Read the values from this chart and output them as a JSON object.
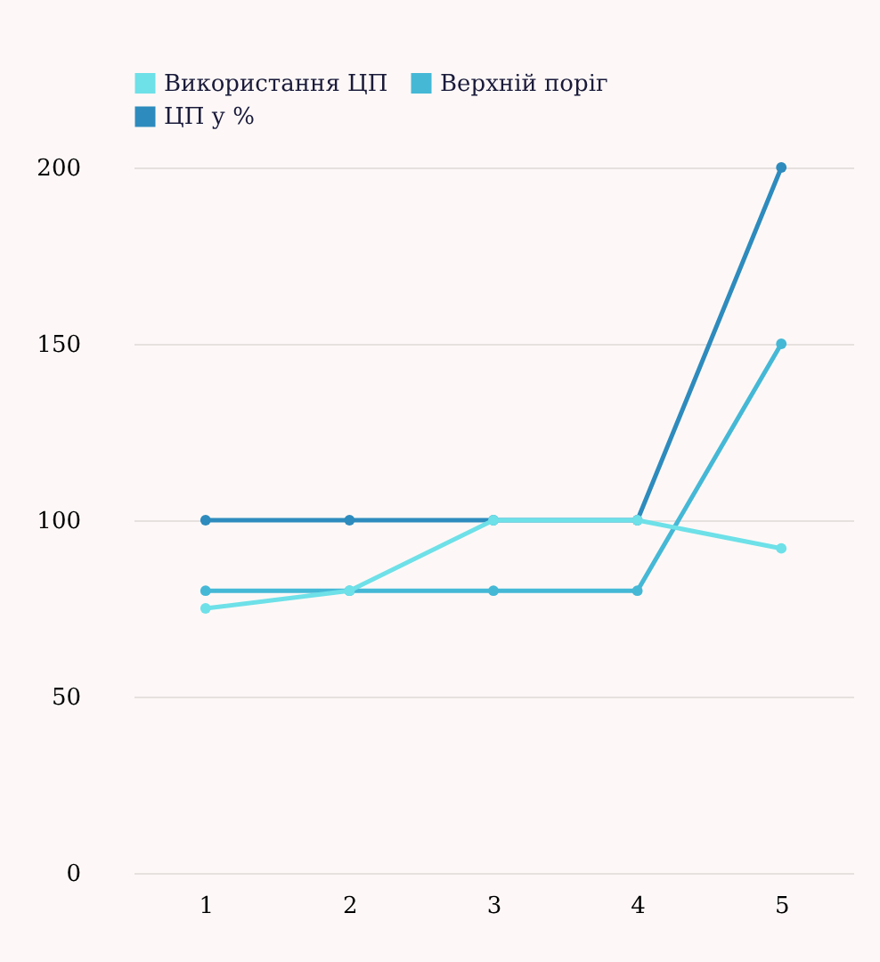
{
  "chart_data": {
    "type": "line",
    "categories": [
      "1",
      "2",
      "3",
      "4",
      "5"
    ],
    "series": [
      {
        "name": "Використання ЦП",
        "color": "#6ee0e8",
        "values": [
          75,
          80,
          100,
          100,
          92
        ]
      },
      {
        "name": "Верхній поріг",
        "color": "#45b8d6",
        "values": [
          80,
          80,
          80,
          80,
          150
        ]
      },
      {
        "name": "ЦП у %",
        "color": "#2e8bbd",
        "values": [
          100,
          100,
          100,
          100,
          200
        ]
      }
    ],
    "ylim": [
      0,
      200
    ],
    "yticks": [
      0,
      50,
      100,
      150,
      200
    ],
    "grid": "y",
    "legend": "top",
    "marker": "circle",
    "line_style": "solid"
  }
}
